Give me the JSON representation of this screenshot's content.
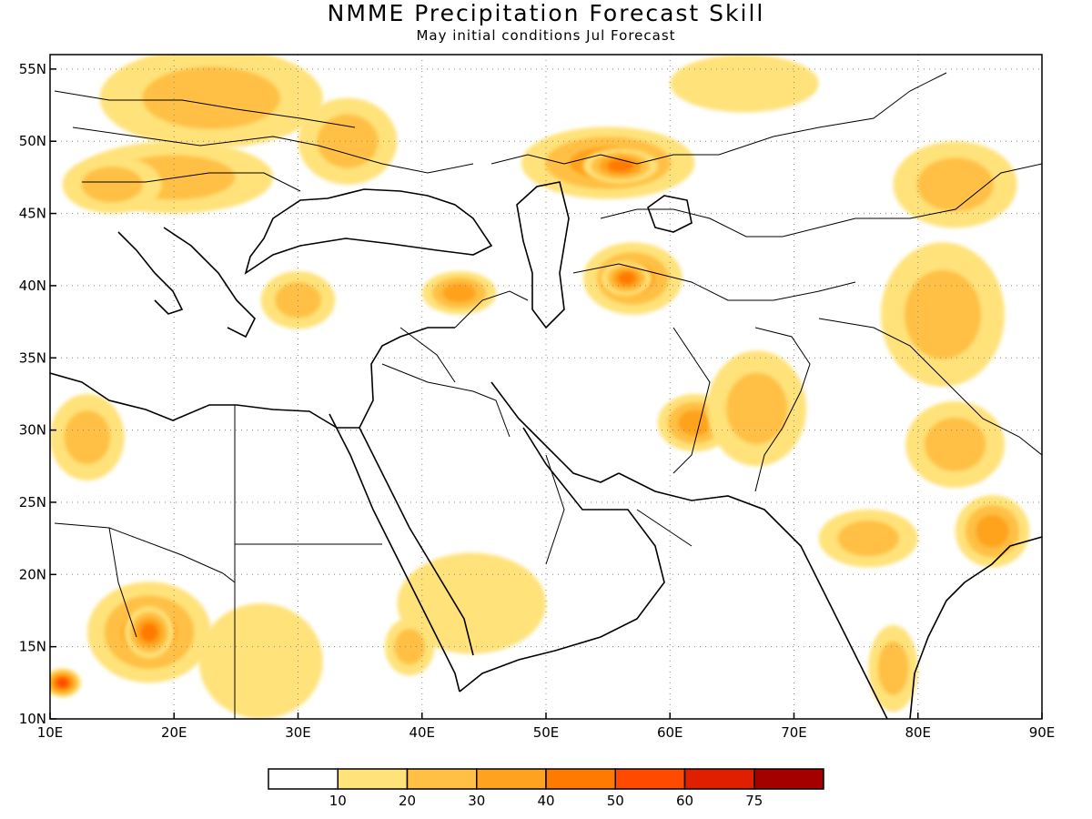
{
  "title": "NMME Precipitation Forecast Skill",
  "subtitle": "May initial conditions  Jul Forecast",
  "map": {
    "lon_range": [
      10,
      90
    ],
    "lat_range": [
      10,
      56
    ],
    "lon_ticks": [
      {
        "value": 10,
        "label": "10E"
      },
      {
        "value": 20,
        "label": "20E"
      },
      {
        "value": 30,
        "label": "30E"
      },
      {
        "value": 40,
        "label": "40E"
      },
      {
        "value": 50,
        "label": "50E"
      },
      {
        "value": 60,
        "label": "60E"
      },
      {
        "value": 70,
        "label": "70E"
      },
      {
        "value": 80,
        "label": "80E"
      },
      {
        "value": 90,
        "label": "90E"
      }
    ],
    "lat_ticks": [
      {
        "value": 10,
        "label": "10N"
      },
      {
        "value": 15,
        "label": "15N"
      },
      {
        "value": 20,
        "label": "20N"
      },
      {
        "value": 25,
        "label": "25N"
      },
      {
        "value": 30,
        "label": "30N"
      },
      {
        "value": 35,
        "label": "35N"
      },
      {
        "value": 40,
        "label": "40N"
      },
      {
        "value": 45,
        "label": "45N"
      },
      {
        "value": 50,
        "label": "50N"
      },
      {
        "value": 55,
        "label": "55N"
      }
    ],
    "grid": "dotted",
    "skill_regions": [
      {
        "name": "europe-north",
        "lon": 23,
        "lat": 53,
        "rlon": 9,
        "rlat": 3.5,
        "level": 2
      },
      {
        "name": "europe-central",
        "lon": 20,
        "lat": 47.5,
        "rlon": 8,
        "rlat": 2.5,
        "level": 2
      },
      {
        "name": "ukraine",
        "lon": 34,
        "lat": 50,
        "rlon": 4,
        "rlat": 3,
        "level": 2
      },
      {
        "name": "alps",
        "lon": 15,
        "lat": 47,
        "rlon": 4,
        "rlat": 2,
        "level": 2
      },
      {
        "name": "kazakh-west",
        "lon": 55,
        "lat": 48.5,
        "rlon": 7,
        "rlat": 2.5,
        "level": 3
      },
      {
        "name": "kazakh-west-core",
        "lon": 56,
        "lat": 48.3,
        "rlon": 3,
        "rlat": 1.2,
        "level": 4
      },
      {
        "name": "russia-north",
        "lon": 66,
        "lat": 54,
        "rlon": 6,
        "rlat": 2,
        "level": 1
      },
      {
        "name": "mongolia",
        "lon": 83,
        "lat": 47,
        "rlon": 5,
        "rlat": 3,
        "level": 2
      },
      {
        "name": "uzbek",
        "lon": 57,
        "lat": 40.5,
        "rlon": 4,
        "rlat": 2.5,
        "level": 3
      },
      {
        "name": "uzbek-core",
        "lon": 56.5,
        "lat": 40.5,
        "rlon": 2,
        "rlat": 1.2,
        "level": 4
      },
      {
        "name": "tarim",
        "lon": 82,
        "lat": 38,
        "rlon": 5,
        "rlat": 5,
        "level": 2
      },
      {
        "name": "turkey-east",
        "lon": 43,
        "lat": 39.5,
        "rlon": 3,
        "rlat": 1.5,
        "level": 3
      },
      {
        "name": "turkey-west",
        "lon": 30,
        "lat": 39,
        "rlon": 3,
        "rlat": 2,
        "level": 2
      },
      {
        "name": "iran-afghan",
        "lon": 62,
        "lat": 30.5,
        "rlon": 3,
        "rlat": 2,
        "level": 3
      },
      {
        "name": "pakistan",
        "lon": 67,
        "lat": 31.5,
        "rlon": 4,
        "rlat": 4,
        "level": 2
      },
      {
        "name": "north-india",
        "lon": 76,
        "lat": 22.5,
        "rlon": 4,
        "rlat": 2,
        "level": 2
      },
      {
        "name": "bengal",
        "lon": 86,
        "lat": 23,
        "rlon": 3,
        "rlat": 2.5,
        "level": 3
      },
      {
        "name": "himalaya",
        "lon": 83,
        "lat": 29,
        "rlon": 4,
        "rlat": 3,
        "level": 2
      },
      {
        "name": "south-india",
        "lon": 78,
        "lat": 13.5,
        "rlon": 2,
        "rlat": 3,
        "level": 2
      },
      {
        "name": "chad",
        "lon": 18,
        "lat": 16,
        "rlon": 5,
        "rlat": 3.5,
        "level": 3
      },
      {
        "name": "chad-core",
        "lon": 18,
        "lat": 16,
        "rlon": 2,
        "rlat": 1.8,
        "level": 4
      },
      {
        "name": "sudan",
        "lon": 27,
        "lat": 14,
        "rlon": 5,
        "rlat": 4,
        "level": 1
      },
      {
        "name": "libya-west",
        "lon": 13,
        "lat": 29.5,
        "rlon": 3,
        "rlat": 3,
        "level": 2
      },
      {
        "name": "arabia-south",
        "lon": 44,
        "lat": 18,
        "rlon": 6,
        "rlat": 3.5,
        "level": 1
      },
      {
        "name": "ethiopia",
        "lon": 39,
        "lat": 15,
        "rlon": 2,
        "rlat": 2,
        "level": 2
      },
      {
        "name": "mali-border",
        "lon": 11,
        "lat": 12.5,
        "rlon": 1.5,
        "rlat": 1,
        "level": 5
      }
    ]
  },
  "colorbar": {
    "colors": [
      "#ffffff",
      "#ffe27a",
      "#ffc045",
      "#ffa21f",
      "#ff7a00",
      "#ff4a00",
      "#e01e00",
      "#a50000"
    ],
    "labels": [
      "10",
      "20",
      "30",
      "40",
      "50",
      "60",
      "75"
    ]
  }
}
